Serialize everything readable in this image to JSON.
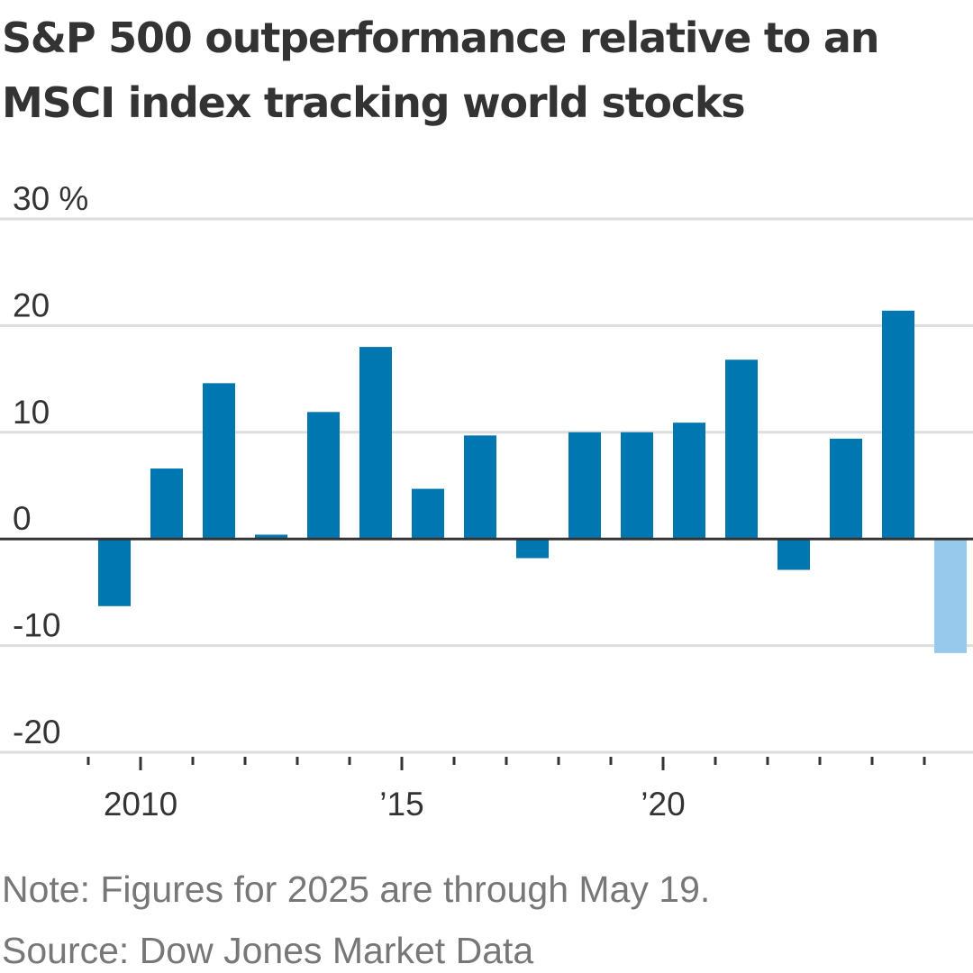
{
  "chart_data": {
    "type": "bar",
    "title": "S&P 500 outperformance relative to an MSCI index tracking world stocks",
    "xlabel": "",
    "ylabel": "",
    "x": [
      2009,
      2010,
      2011,
      2012,
      2013,
      2014,
      2015,
      2016,
      2017,
      2018,
      2019,
      2020,
      2021,
      2022,
      2023,
      2024,
      2025
    ],
    "values": [
      -6.3,
      6.6,
      14.6,
      0.4,
      11.9,
      18.0,
      4.7,
      9.7,
      -1.8,
      10.0,
      10.0,
      10.9,
      16.8,
      -2.9,
      9.4,
      21.4,
      -10.7
    ],
    "partial_flags": [
      false,
      false,
      false,
      false,
      false,
      false,
      false,
      false,
      false,
      false,
      false,
      false,
      false,
      false,
      false,
      false,
      true
    ],
    "ylim": [
      -20,
      30
    ],
    "yticks": [
      30,
      20,
      10,
      0,
      -10,
      -20
    ],
    "ytick_labels": [
      "30 %",
      "20",
      "10",
      "0",
      "-10",
      "-20"
    ],
    "xtick_labels": [
      {
        "year": 2010,
        "label": "2010"
      },
      {
        "year": 2015,
        "label": "’15"
      },
      {
        "year": 2020,
        "label": "’20"
      }
    ],
    "grid": true,
    "colors": {
      "bar": "#0077b0",
      "partial_bar": "#96c9ec",
      "grid": "#dddddd",
      "axis": "#333333",
      "text": "#333333"
    }
  },
  "notes": {
    "note": "Note: Figures for 2025 are through May 19.",
    "source": "Source: Dow Jones Market Data"
  }
}
